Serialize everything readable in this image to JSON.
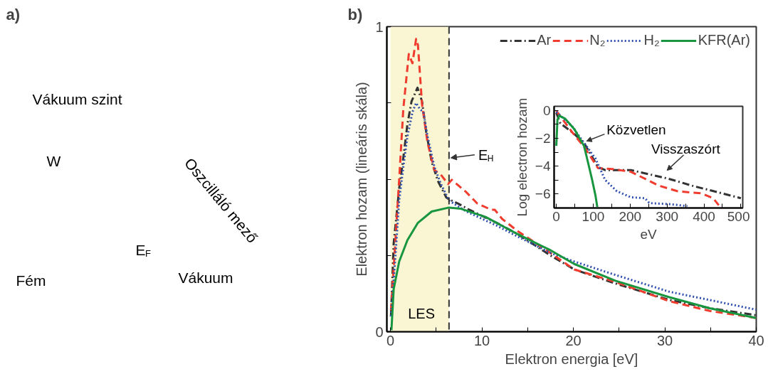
{
  "chart_data": [
    {
      "type": "other",
      "title": "a)",
      "annotations": [
        "Vákuum szint",
        "W",
        "Oszcilláló mező",
        "E$_{F}$",
        "Fém",
        "Vákuum"
      ]
    },
    {
      "type": "line",
      "title": "b)",
      "xlabel": "Elektron energia [eV]",
      "ylabel": "Elektron hozam (lineáris skála)",
      "xlim": [
        -0.4,
        40
      ],
      "ylim": [
        0,
        1
      ],
      "xticks": [
        0,
        {
          "value": 5,
          "label": null
        },
        10,
        {
          "value": 15,
          "label": null
        },
        20,
        {
          "value": 25,
          "label": null
        },
        30,
        {
          "value": 35,
          "label": null
        },
        40
      ],
      "yticks": [
        0,
        {
          "value": 0.25,
          "label": null
        },
        {
          "value": 0.5,
          "label": null
        },
        {
          "value": 0.75,
          "label": null
        },
        1
      ],
      "grid": false,
      "legend": "top right",
      "bands": [
        {
          "axis": "x",
          "from": 0,
          "to": 6.4,
          "label": "LES",
          "color": "#faf5d2"
        }
      ],
      "ref_lines": [
        {
          "axis": "x",
          "value": 6.4,
          "label": "E$_{H}$",
          "color": "#333333",
          "line_style": "dashed"
        }
      ],
      "series": [
        {
          "name": "Ar",
          "color": "#333333",
          "line_style": "dashdot",
          "x": [
            0.05,
            0.35,
            0.95,
            1.4,
            1.85,
            2.3,
            2.95,
            3.45,
            3.9,
            4.5,
            5.2,
            6.1,
            6.4,
            7.4,
            8.6,
            11.6,
            13.9,
            17.5,
            20.1,
            24.6,
            30.5,
            34.9,
            40
          ],
          "values": [
            0.05,
            0.29,
            0.47,
            0.57,
            0.68,
            0.755,
            0.8,
            0.755,
            0.655,
            0.557,
            0.493,
            0.44,
            0.434,
            0.42,
            0.4,
            0.357,
            0.32,
            0.25,
            0.204,
            0.158,
            0.104,
            0.077,
            0.054
          ]
        },
        {
          "name": "N₂",
          "color": "#f03c2e",
          "line_style": "dashed",
          "x": [
            0.05,
            0.5,
            0.95,
            1.4,
            2.0,
            2.4,
            2.8,
            3.0,
            3.45,
            4.05,
            4.8,
            5.5,
            6.3,
            6.7,
            7.4,
            8.3,
            9.5,
            11.0,
            11.4,
            12.2,
            13.9,
            17.5,
            20.1,
            24.6,
            30.5,
            34.9,
            40
          ],
          "values": [
            0.07,
            0.28,
            0.5,
            0.73,
            0.91,
            0.88,
            0.96,
            0.94,
            0.745,
            0.62,
            0.53,
            0.515,
            0.484,
            0.498,
            0.48,
            0.457,
            0.42,
            0.4,
            0.4,
            0.37,
            0.33,
            0.258,
            0.204,
            0.163,
            0.1,
            0.068,
            0.045
          ]
        },
        {
          "name": "H₂",
          "color": "#3050b0",
          "line_style": "dotted",
          "x": [
            0.05,
            0.5,
            0.95,
            1.4,
            1.85,
            2.4,
            2.8,
            3.2,
            3.6,
            4.05,
            4.8,
            5.5,
            6.4,
            8.3,
            11.6,
            13.9,
            17.5,
            20.1,
            24.6,
            30.5,
            34.9,
            40
          ],
          "values": [
            0.05,
            0.23,
            0.43,
            0.54,
            0.64,
            0.72,
            0.75,
            0.73,
            0.72,
            0.64,
            0.54,
            0.485,
            0.43,
            0.394,
            0.348,
            0.312,
            0.258,
            0.23,
            0.186,
            0.131,
            0.104,
            0.072
          ]
        },
        {
          "name": "KFR(Ar)",
          "color": "#17963f",
          "line_style": "solid",
          "x": [
            0.1,
            0.35,
            0.95,
            1.85,
            3.0,
            4.5,
            6.4,
            7.7,
            10.4,
            13.9,
            17.5,
            20.1,
            24.6,
            30.5,
            34.9,
            40
          ],
          "values": [
            0.005,
            0.14,
            0.23,
            0.3,
            0.357,
            0.394,
            0.407,
            0.403,
            0.376,
            0.32,
            0.267,
            0.222,
            0.167,
            0.113,
            0.077,
            0.045
          ]
        }
      ]
    },
    {
      "type": "line",
      "xlabel": "eV",
      "ylabel": "Log electron hozam",
      "xlim": [
        -6,
        505
      ],
      "ylim": [
        -7,
        0.3
      ],
      "xticks": [
        0,
        {
          "value": 50,
          "label": null
        },
        100,
        {
          "value": 150,
          "label": null
        },
        200,
        {
          "value": 250,
          "label": null
        },
        300,
        {
          "value": 350,
          "label": null
        },
        400,
        {
          "value": 450,
          "label": null
        },
        500
      ],
      "yticks": [
        -6,
        {
          "value": -5,
          "label": null
        },
        -4,
        {
          "value": -3,
          "label": null
        },
        -2,
        {
          "value": -1,
          "label": null
        },
        0
      ],
      "grid": false,
      "annotations": [
        {
          "text": "Közvetlen",
          "x": 82,
          "y": -2.2
        },
        "Visszaszórt"
      ],
      "series": [
        {
          "color": "#333333",
          "line_style": "dashdot",
          "x": [
            0,
            11,
            43,
            75,
            113,
            132,
            202,
            304,
            368,
            500
          ],
          "values": [
            -0.17,
            -0.93,
            -1.56,
            -2.33,
            -4.07,
            -4.28,
            -4.28,
            -4.9,
            -5.4,
            -6.3
          ]
        },
        {
          "color": "#f03c2e",
          "line_style": "dashed",
          "x": [
            0,
            4,
            43,
            75,
            113,
            151,
            202,
            278,
            329,
            393,
            425,
            440
          ],
          "values": [
            -0.03,
            -0.17,
            -1.56,
            -2.6,
            -4.14,
            -4.2,
            -4.4,
            -5.4,
            -5.8,
            -5.95,
            -6.3,
            -6.8
          ]
        },
        {
          "color": "#3050b0",
          "line_style": "dotted",
          "x": [
            0,
            43,
            75,
            106,
            132,
            164,
            202,
            240,
            252,
            304,
            355
          ],
          "values": [
            -0.1,
            -1.14,
            -2.33,
            -3.44,
            -4.98,
            -5.8,
            -6.23,
            -6.3,
            -6.65,
            -6.72,
            -6.86
          ]
        },
        {
          "color": "#17963f",
          "line_style": "solid",
          "x": [
            0,
            3,
            8,
            24,
            49,
            75,
            87,
            97,
            106,
            111
          ],
          "values": [
            -2.54,
            -0.66,
            -0.38,
            -0.59,
            -1.35,
            -2.54,
            -3.86,
            -4.98,
            -6.1,
            -6.93
          ]
        }
      ]
    }
  ]
}
